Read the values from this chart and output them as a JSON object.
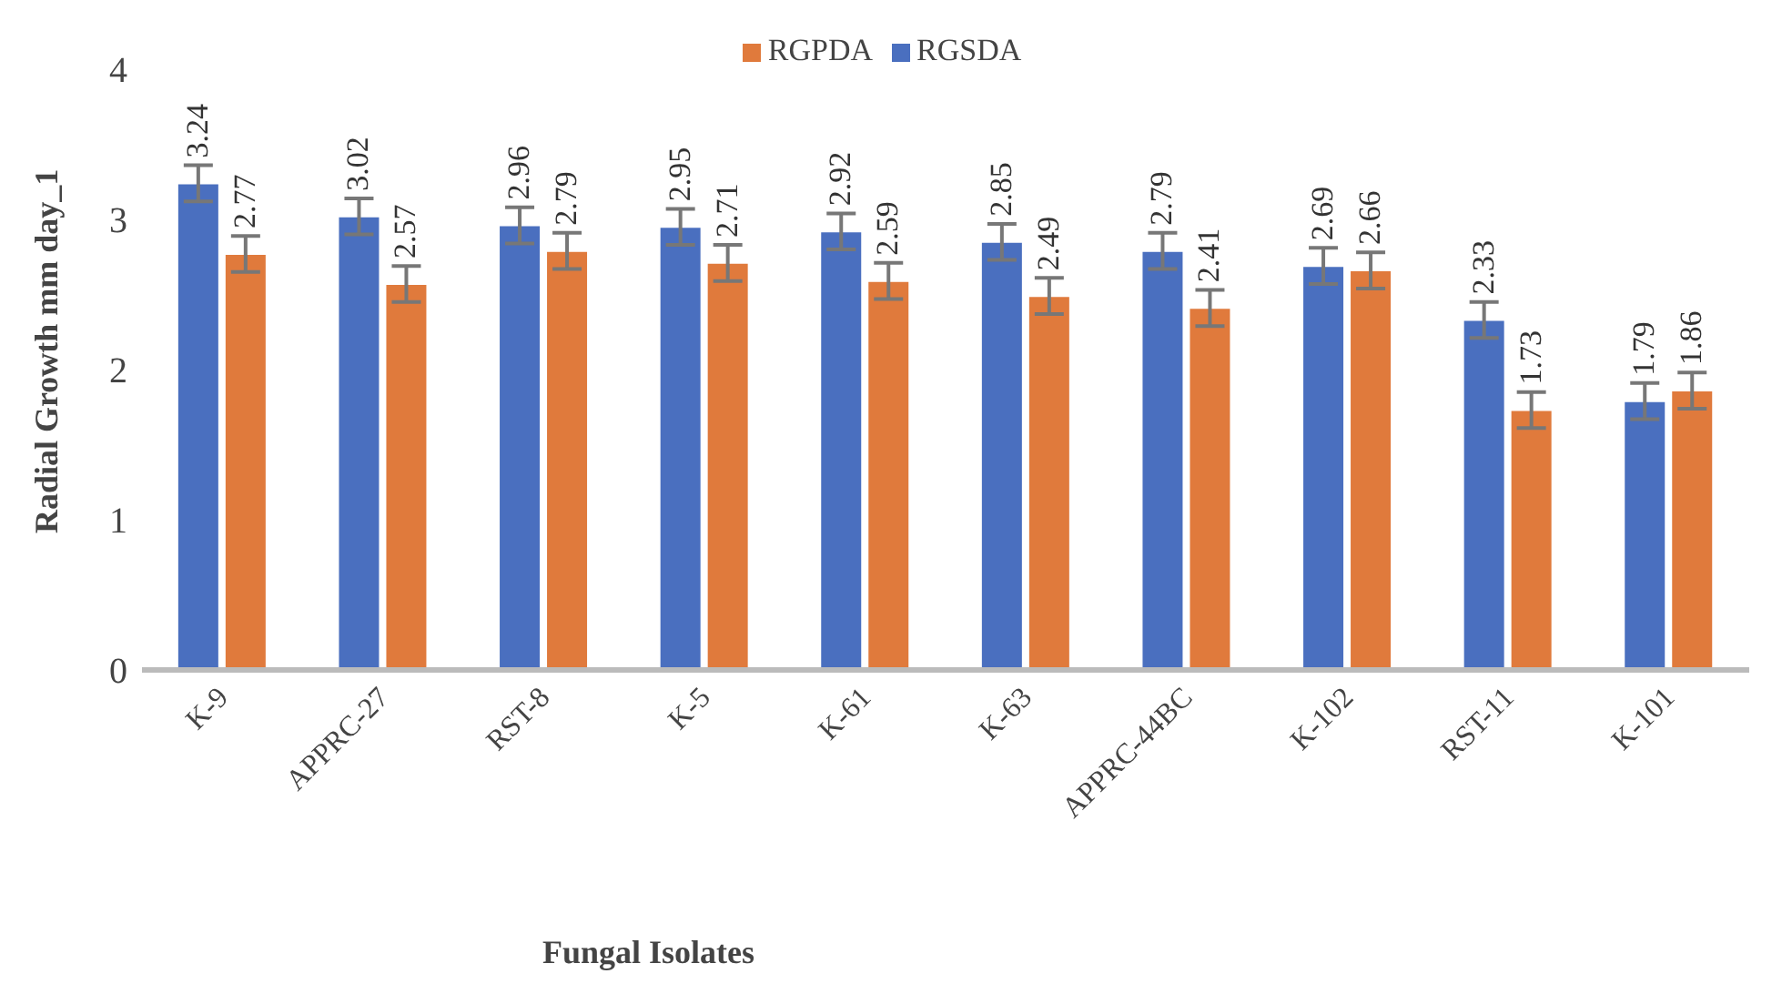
{
  "chart_data": {
    "type": "bar",
    "xlabel": "Fungal Isolates",
    "ylabel": "Radial Growth mm day_1",
    "categories": [
      "K-9",
      "APPRC-27",
      "RST-8",
      "K-5",
      "K-61",
      "K-63",
      "APPRC-44BC",
      "K-102",
      "RST-11",
      "K-101"
    ],
    "series": [
      {
        "name": "RGSDA",
        "color": "#4a6fbf",
        "values": [
          3.24,
          3.02,
          2.96,
          2.95,
          2.92,
          2.85,
          2.79,
          2.69,
          2.33,
          1.79
        ],
        "errors": [
          0.12,
          0.12,
          0.12,
          0.12,
          0.12,
          0.12,
          0.12,
          0.12,
          0.12,
          0.12
        ]
      },
      {
        "name": "RGPDA",
        "color": "#e07a3c",
        "values": [
          2.77,
          2.57,
          2.79,
          2.71,
          2.59,
          2.49,
          2.41,
          2.66,
          1.73,
          1.86
        ],
        "errors": [
          0.12,
          0.12,
          0.12,
          0.12,
          0.12,
          0.12,
          0.12,
          0.12,
          0.12,
          0.12
        ]
      }
    ],
    "ylim": [
      0,
      4
    ],
    "yticks": [
      0,
      1,
      2,
      3,
      4
    ],
    "grid": false,
    "legend": "top",
    "data_labels": true
  }
}
